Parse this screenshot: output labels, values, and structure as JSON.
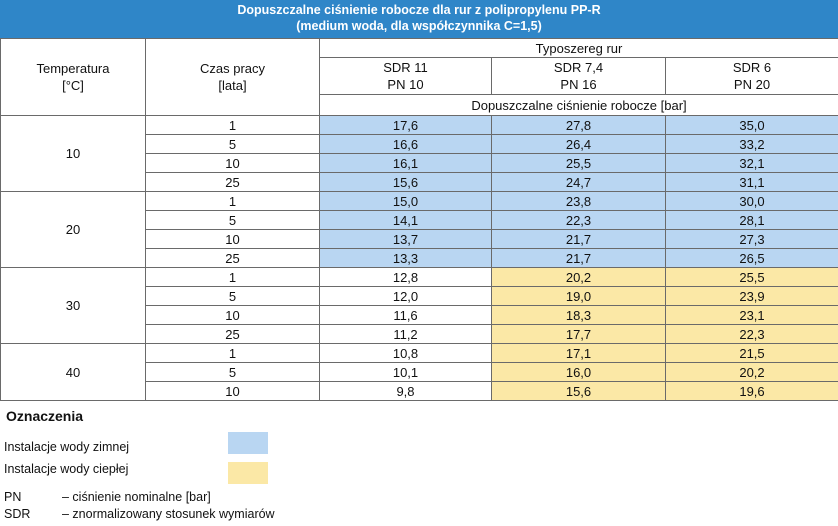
{
  "title": {
    "line1": "Dopuszczalne ciśnienie robocze dla rur z polipropylenu PP-R",
    "line2": "(medium woda, dla współczynnika C=1,5)"
  },
  "headers": {
    "temperature": [
      "Temperatura",
      "[°C]"
    ],
    "time": [
      "Czas pracy",
      "[lata]"
    ],
    "series": "Typoszereg rur",
    "columns": [
      {
        "sdr": "SDR 11",
        "pn": "PN 10"
      },
      {
        "sdr": "SDR 7,4",
        "pn": "PN 16"
      },
      {
        "sdr": "SDR 6",
        "pn": "PN 20"
      }
    ],
    "pressure": "Dopuszczalne ciśnienie robocze [bar]"
  },
  "groups": [
    {
      "temp": "10",
      "rows": [
        {
          "time": "1",
          "v": [
            "17,6",
            "27,8",
            "35,0"
          ],
          "c": [
            "blue",
            "blue",
            "blue"
          ]
        },
        {
          "time": "5",
          "v": [
            "16,6",
            "26,4",
            "33,2"
          ],
          "c": [
            "blue",
            "blue",
            "blue"
          ]
        },
        {
          "time": "10",
          "v": [
            "16,1",
            "25,5",
            "32,1"
          ],
          "c": [
            "blue",
            "blue",
            "blue"
          ]
        },
        {
          "time": "25",
          "v": [
            "15,6",
            "24,7",
            "31,1"
          ],
          "c": [
            "blue",
            "blue",
            "blue"
          ]
        }
      ]
    },
    {
      "temp": "20",
      "rows": [
        {
          "time": "1",
          "v": [
            "15,0",
            "23,8",
            "30,0"
          ],
          "c": [
            "blue",
            "blue",
            "blue"
          ]
        },
        {
          "time": "5",
          "v": [
            "14,1",
            "22,3",
            "28,1"
          ],
          "c": [
            "blue",
            "blue",
            "blue"
          ]
        },
        {
          "time": "10",
          "v": [
            "13,7",
            "21,7",
            "27,3"
          ],
          "c": [
            "blue",
            "blue",
            "blue"
          ]
        },
        {
          "time": "25",
          "v": [
            "13,3",
            "21,7",
            "26,5"
          ],
          "c": [
            "blue",
            "blue",
            "blue"
          ]
        }
      ]
    },
    {
      "temp": "30",
      "rows": [
        {
          "time": "1",
          "v": [
            "12,8",
            "20,2",
            "25,5"
          ],
          "c": [
            "white",
            "yellow",
            "yellow"
          ]
        },
        {
          "time": "5",
          "v": [
            "12,0",
            "19,0",
            "23,9"
          ],
          "c": [
            "white",
            "yellow",
            "yellow"
          ]
        },
        {
          "time": "10",
          "v": [
            "11,6",
            "18,3",
            "23,1"
          ],
          "c": [
            "white",
            "yellow",
            "yellow"
          ]
        },
        {
          "time": "25",
          "v": [
            "11,2",
            "17,7",
            "22,3"
          ],
          "c": [
            "white",
            "yellow",
            "yellow"
          ]
        }
      ]
    },
    {
      "temp": "40",
      "rows": [
        {
          "time": "1",
          "v": [
            "10,8",
            "17,1",
            "21,5"
          ],
          "c": [
            "white",
            "yellow",
            "yellow"
          ]
        },
        {
          "time": "5",
          "v": [
            "10,1",
            "16,0",
            "20,2"
          ],
          "c": [
            "white",
            "yellow",
            "yellow"
          ]
        },
        {
          "time": "10",
          "v": [
            "9,8",
            "15,6",
            "19,6"
          ],
          "c": [
            "white",
            "yellow",
            "yellow"
          ]
        }
      ]
    }
  ],
  "legend": {
    "title": "Oznaczenia",
    "cold": "Instalacje wody zimnej",
    "warm": "Instalacje wody ciepłej",
    "cold_color": "#b9d6f2",
    "warm_color": "#fbe8a6",
    "abbreviations": [
      {
        "key": "PN",
        "text": "– ciśnienie nominalne [bar]"
      },
      {
        "key": "SDR",
        "text": "– znormalizowany stosunek wymiarów"
      }
    ]
  }
}
